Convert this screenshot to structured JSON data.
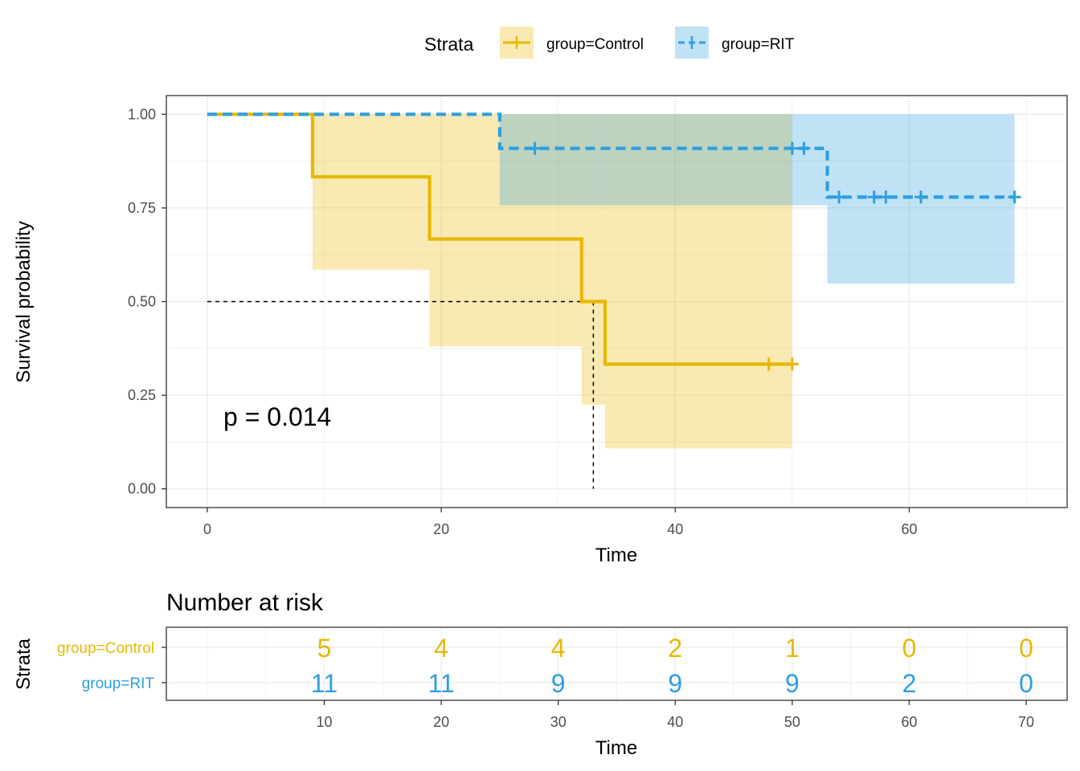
{
  "colors": {
    "control": "#E7B800",
    "rit": "#2E9FDF",
    "grid": "#ebebeb",
    "panel_border": "#333333"
  },
  "legend": {
    "title": "Strata",
    "items": [
      "group=Control",
      "group=RIT"
    ]
  },
  "chart_data": {
    "type": "line",
    "subtype": "kaplan-meier survival curve",
    "ylabel": "Survival probability",
    "xlabel": "Time",
    "xlim": [
      -3.5,
      73.5
    ],
    "ylim": [
      -0.05,
      1.05
    ],
    "xticks": [
      0,
      20,
      40,
      60
    ],
    "xtick_labels": [
      "0",
      "20",
      "40",
      "60"
    ],
    "yticks": [
      0,
      0.25,
      0.5,
      0.75,
      1.0
    ],
    "ytick_labels": [
      "0.00",
      "0.25",
      "0.50",
      "0.75",
      "1.00"
    ],
    "pvalue_label": "p = 0.014",
    "median_line": {
      "x": 33,
      "y": 0.5
    },
    "series": [
      {
        "name": "group=Control",
        "color_key": "control",
        "dash": false,
        "steps": [
          [
            0,
            1.0
          ],
          [
            9,
            0.833
          ],
          [
            19,
            0.667
          ],
          [
            32,
            0.5
          ],
          [
            34,
            0.333
          ],
          [
            50,
            0.333
          ]
        ],
        "censor": [
          [
            48,
            0.333
          ],
          [
            50,
            0.333
          ]
        ],
        "ci": [
          [
            0,
            9,
            1.0,
            1.0
          ],
          [
            9,
            19,
            0.585,
            1.0
          ],
          [
            19,
            32,
            0.38,
            1.0
          ],
          [
            32,
            34,
            0.225,
            1.0
          ],
          [
            34,
            50,
            0.108,
            1.0
          ]
        ]
      },
      {
        "name": "group=RIT",
        "color_key": "rit",
        "dash": true,
        "steps": [
          [
            0,
            1.0
          ],
          [
            25,
            0.909
          ],
          [
            53,
            0.779
          ],
          [
            69,
            0.779
          ]
        ],
        "censor": [
          [
            28,
            0.909
          ],
          [
            50,
            0.909
          ],
          [
            51,
            0.909
          ],
          [
            54,
            0.779
          ],
          [
            57,
            0.779
          ],
          [
            58,
            0.779
          ],
          [
            61,
            0.779
          ],
          [
            69,
            0.779
          ]
        ],
        "ci": [
          [
            0,
            25,
            1.0,
            1.0
          ],
          [
            25,
            53,
            0.757,
            1.0
          ],
          [
            53,
            69,
            0.548,
            1.0
          ]
        ]
      }
    ]
  },
  "risk_table": {
    "title": "Number at risk",
    "ylabel": "Strata",
    "xlabel": "Time",
    "xlim": [
      -3.5,
      73.5
    ],
    "xticks": [
      10,
      20,
      30,
      40,
      50,
      60,
      70
    ],
    "xtick_labels": [
      "10",
      "20",
      "30",
      "40",
      "50",
      "60",
      "70"
    ],
    "rows": [
      {
        "label": "group=Control",
        "color_key": "control",
        "values": [
          5,
          4,
          4,
          2,
          1,
          0,
          0
        ],
        "value_labels": [
          "5",
          "4",
          "4",
          "2",
          "1",
          "0",
          "0"
        ]
      },
      {
        "label": "group=RIT",
        "color_key": "rit",
        "values": [
          11,
          11,
          9,
          9,
          9,
          2,
          0
        ],
        "value_labels": [
          "11",
          "11",
          "9",
          "9",
          "9",
          "2",
          "0"
        ]
      }
    ]
  }
}
